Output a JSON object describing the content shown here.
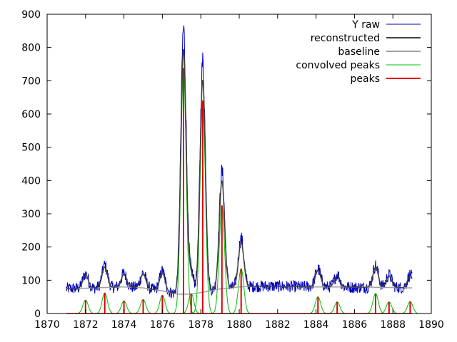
{
  "chart_data": {
    "type": "line",
    "title": "",
    "xlabel": "",
    "ylabel": "",
    "xlim": [
      1870,
      1890
    ],
    "ylim": [
      0,
      900
    ],
    "x_ticks": [
      1870,
      1872,
      1874,
      1876,
      1878,
      1880,
      1882,
      1884,
      1886,
      1888,
      1890
    ],
    "y_ticks": [
      0,
      100,
      200,
      300,
      400,
      500,
      600,
      700,
      800,
      900
    ],
    "grid": false,
    "legend_position": "top-right",
    "x_range": [
      1871,
      1889
    ],
    "baseline": {
      "name": "baseline",
      "color": "#a0a0a0",
      "x": [
        1871,
        1872,
        1873,
        1874,
        1875,
        1876,
        1876.8,
        1877.5,
        1878,
        1879,
        1880,
        1881,
        1882,
        1883,
        1884,
        1885,
        1886,
        1887,
        1888,
        1889
      ],
      "y": [
        75,
        76,
        78,
        80,
        77,
        68,
        58,
        58,
        63,
        74,
        80,
        82,
        82,
        81,
        80,
        80,
        79,
        79,
        78,
        77
      ]
    },
    "peaks": {
      "name": "peaks",
      "color": "#e00000",
      "width": 0.14,
      "x": [
        1872.0,
        1873.0,
        1874.0,
        1875.0,
        1876.0,
        1877.1,
        1877.5,
        1878.1,
        1879.1,
        1880.1,
        1884.1,
        1885.1,
        1887.1,
        1887.8,
        1888.9
      ],
      "y": [
        40,
        62,
        38,
        42,
        55,
        738,
        60,
        640,
        325,
        135,
        50,
        35,
        60,
        35,
        36
      ]
    },
    "series": [
      {
        "name": "Y raw",
        "color": "#0000c0"
      },
      {
        "name": "reconstructed",
        "color": "#404040"
      },
      {
        "name": "baseline",
        "color": "#a0a0a0"
      },
      {
        "name": "convolved peaks",
        "color": "#00c000"
      },
      {
        "name": "peaks",
        "color": "#e00000"
      }
    ],
    "noise_amplitude": 18
  }
}
